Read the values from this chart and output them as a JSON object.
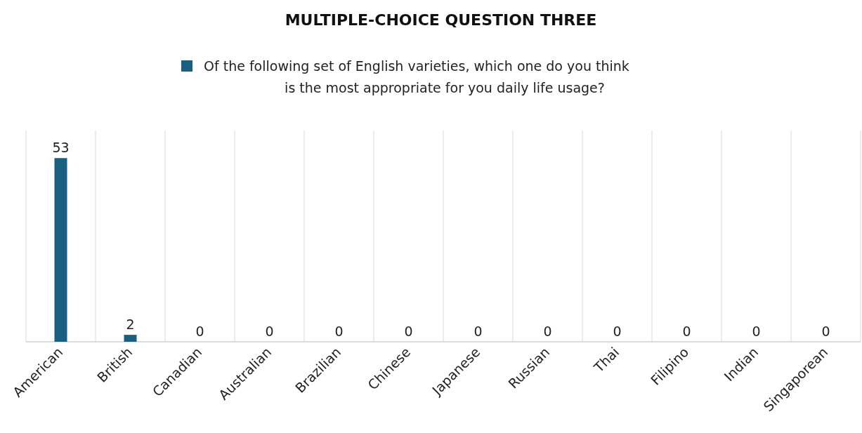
{
  "chart_data": {
    "type": "bar",
    "title": "MULTIPLE-CHOICE QUESTION THREE",
    "categories": [
      "American",
      "British",
      "Canadian",
      "Australian",
      "Brazilian",
      "Chinese",
      "Japanese",
      "Russian",
      "Thai",
      "Filipino",
      "Indian",
      "Singaporean"
    ],
    "series": [
      {
        "name": "Of the following set of English varieties, which one do you think is the most appropriate for you daily life usage?",
        "color": "#1a5e82",
        "values": [
          53,
          2,
          0,
          0,
          0,
          0,
          0,
          0,
          0,
          0,
          0,
          0
        ]
      }
    ],
    "data_labels": true,
    "grid": "x",
    "legend": "top"
  }
}
